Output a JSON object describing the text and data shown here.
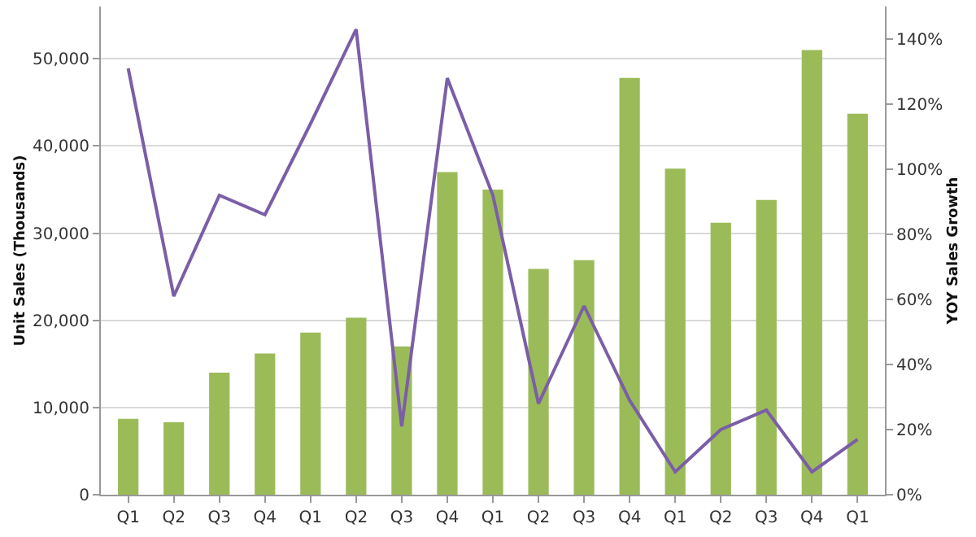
{
  "chart_data": {
    "type": "bar",
    "categories": [
      "Q1",
      "Q2",
      "Q3",
      "Q4",
      "Q1",
      "Q2",
      "Q3",
      "Q4",
      "Q1",
      "Q2",
      "Q3",
      "Q4",
      "Q1",
      "Q2",
      "Q3",
      "Q4",
      "Q1"
    ],
    "ylabel": "Unit Sales (Thousands)",
    "y2label": "YOY Sales Growth",
    "series": [
      {
        "color": "#9bbb59",
        "values": [
          8700,
          8300,
          14000,
          16200,
          18600,
          20300,
          17000,
          37000,
          35000,
          25900,
          26900,
          47800,
          37400,
          31200,
          33800,
          51000,
          43700
        ]
      },
      {
        "type": "line",
        "axis": "y2",
        "color": "#7b5ea7",
        "values": [
          131,
          61,
          92,
          86,
          114,
          143,
          21,
          128,
          92,
          28,
          58,
          29,
          7,
          20,
          26,
          7,
          17
        ]
      }
    ],
    "ylim": [
      0,
      56000
    ],
    "yticks": [
      {
        "value": 0,
        "label": "0"
      },
      {
        "value": 10000,
        "label": "10,000"
      },
      {
        "value": 20000,
        "label": "20,000"
      },
      {
        "value": 30000,
        "label": "30,000"
      },
      {
        "value": 40000,
        "label": "40,000"
      },
      {
        "value": 50000,
        "label": "50,000"
      }
    ],
    "y2lim": [
      0,
      150
    ],
    "y2ticks": [
      {
        "value": 0,
        "label": "0%"
      },
      {
        "value": 20,
        "label": "20%"
      },
      {
        "value": 40,
        "label": "40%"
      },
      {
        "value": 60,
        "label": "60%"
      },
      {
        "value": 80,
        "label": "80%"
      },
      {
        "value": 100,
        "label": "100%"
      },
      {
        "value": 120,
        "label": "120%"
      },
      {
        "value": 140,
        "label": "140%"
      }
    ],
    "grid": "y",
    "legend": false,
    "marker": "none",
    "line_style": "solid"
  }
}
